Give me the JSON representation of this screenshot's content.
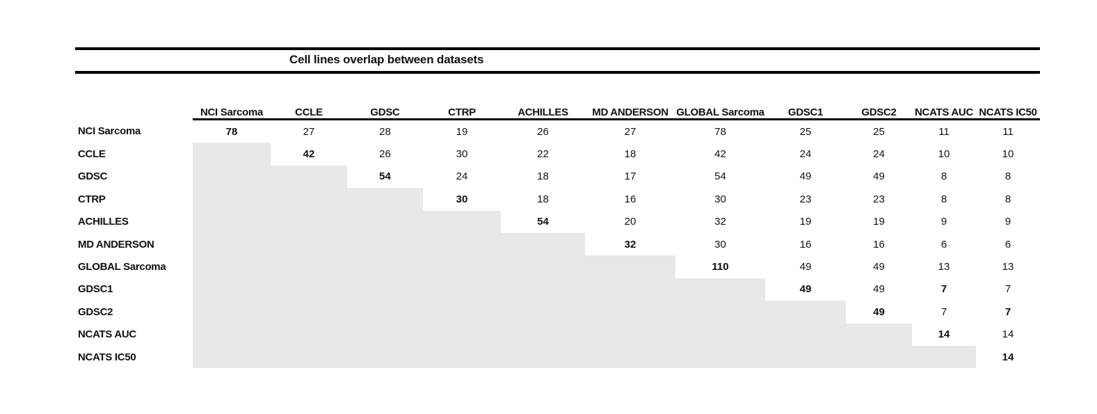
{
  "title": "Cell lines overlap between datasets",
  "colors": {
    "shade": "#e8e8e8",
    "rule": "#000000"
  },
  "table": {
    "columns": [
      "NCI Sarcoma",
      "CCLE",
      "GDSC",
      "CTRP",
      "ACHILLES",
      "MD ANDERSON",
      "GLOBAL Sarcoma",
      "GDSC1",
      "GDSC2",
      "NCATS AUC",
      "NCATS IC50"
    ],
    "rows": [
      {
        "label": "NCI Sarcoma",
        "cells": [
          {
            "v": "78",
            "b": true
          },
          {
            "v": "27"
          },
          {
            "v": "28"
          },
          {
            "v": "19"
          },
          {
            "v": "26"
          },
          {
            "v": "27"
          },
          {
            "v": "78"
          },
          {
            "v": "25"
          },
          {
            "v": "25"
          },
          {
            "v": "11"
          },
          {
            "v": "11"
          }
        ]
      },
      {
        "label": "CCLE",
        "cells": [
          null,
          {
            "v": "42",
            "b": true
          },
          {
            "v": "26"
          },
          {
            "v": "30"
          },
          {
            "v": "22"
          },
          {
            "v": "18"
          },
          {
            "v": "42"
          },
          {
            "v": "24"
          },
          {
            "v": "24"
          },
          {
            "v": "10"
          },
          {
            "v": "10"
          }
        ]
      },
      {
        "label": "GDSC",
        "cells": [
          null,
          null,
          {
            "v": "54",
            "b": true
          },
          {
            "v": "24"
          },
          {
            "v": "18"
          },
          {
            "v": "17"
          },
          {
            "v": "54"
          },
          {
            "v": "49"
          },
          {
            "v": "49"
          },
          {
            "v": "8"
          },
          {
            "v": "8"
          }
        ]
      },
      {
        "label": "CTRP",
        "cells": [
          null,
          null,
          null,
          {
            "v": "30",
            "b": true
          },
          {
            "v": "18"
          },
          {
            "v": "16"
          },
          {
            "v": "30"
          },
          {
            "v": "23"
          },
          {
            "v": "23"
          },
          {
            "v": "8"
          },
          {
            "v": "8"
          }
        ]
      },
      {
        "label": "ACHILLES",
        "cells": [
          null,
          null,
          null,
          null,
          {
            "v": "54",
            "b": true
          },
          {
            "v": "20"
          },
          {
            "v": "32"
          },
          {
            "v": "19"
          },
          {
            "v": "19"
          },
          {
            "v": "9"
          },
          {
            "v": "9"
          }
        ]
      },
      {
        "label": "MD ANDERSON",
        "cells": [
          null,
          null,
          null,
          null,
          null,
          {
            "v": "32",
            "b": true
          },
          {
            "v": "30"
          },
          {
            "v": "16"
          },
          {
            "v": "16"
          },
          {
            "v": "6"
          },
          {
            "v": "6"
          }
        ]
      },
      {
        "label": "GLOBAL Sarcoma",
        "cells": [
          null,
          null,
          null,
          null,
          null,
          null,
          {
            "v": "110",
            "b": true
          },
          {
            "v": "49"
          },
          {
            "v": "49"
          },
          {
            "v": "13"
          },
          {
            "v": "13"
          }
        ]
      },
      {
        "label": "GDSC1",
        "cells": [
          null,
          null,
          null,
          null,
          null,
          null,
          null,
          {
            "v": "49",
            "b": true
          },
          {
            "v": "49"
          },
          {
            "v": "7",
            "b": true
          },
          {
            "v": "7"
          }
        ]
      },
      {
        "label": "GDSC2",
        "cells": [
          null,
          null,
          null,
          null,
          null,
          null,
          null,
          null,
          {
            "v": "49",
            "b": true
          },
          {
            "v": "7"
          },
          {
            "v": "7",
            "b": true
          }
        ]
      },
      {
        "label": "NCATS AUC",
        "cells": [
          null,
          null,
          null,
          null,
          null,
          null,
          null,
          null,
          null,
          {
            "v": "14",
            "b": true
          },
          {
            "v": "14"
          }
        ]
      },
      {
        "label": "NCATS IC50",
        "cells": [
          null,
          null,
          null,
          null,
          null,
          null,
          null,
          null,
          null,
          null,
          {
            "v": "14",
            "b": true
          }
        ]
      }
    ]
  }
}
